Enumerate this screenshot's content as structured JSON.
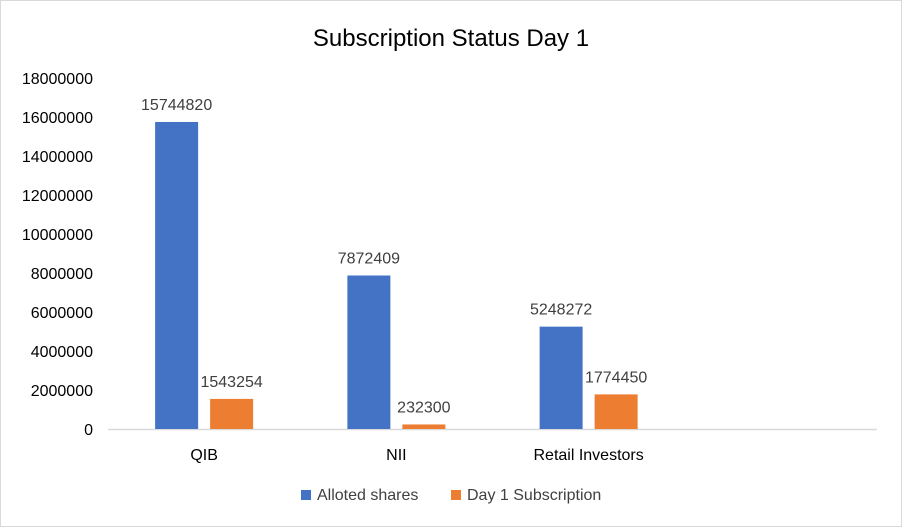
{
  "chart_data": {
    "type": "bar",
    "title": "Subscription Status Day 1",
    "xlabel": "",
    "ylabel": "",
    "categories": [
      "QIB",
      "NII",
      "Retail Investors"
    ],
    "series": [
      {
        "name": "Alloted shares",
        "color": "#4472C4",
        "values": [
          15744820,
          7872409,
          5248272
        ]
      },
      {
        "name": "Day 1 Subscription",
        "color": "#ED7D31",
        "values": [
          1543254,
          232300,
          1774450
        ]
      }
    ],
    "ylim": [
      0,
      18000000
    ],
    "yticks": [
      "0",
      "2000000",
      "4000000",
      "6000000",
      "8000000",
      "10000000",
      "12000000",
      "14000000",
      "16000000",
      "18000000"
    ],
    "grid": false,
    "legend": "bottom",
    "data_labels": true
  }
}
